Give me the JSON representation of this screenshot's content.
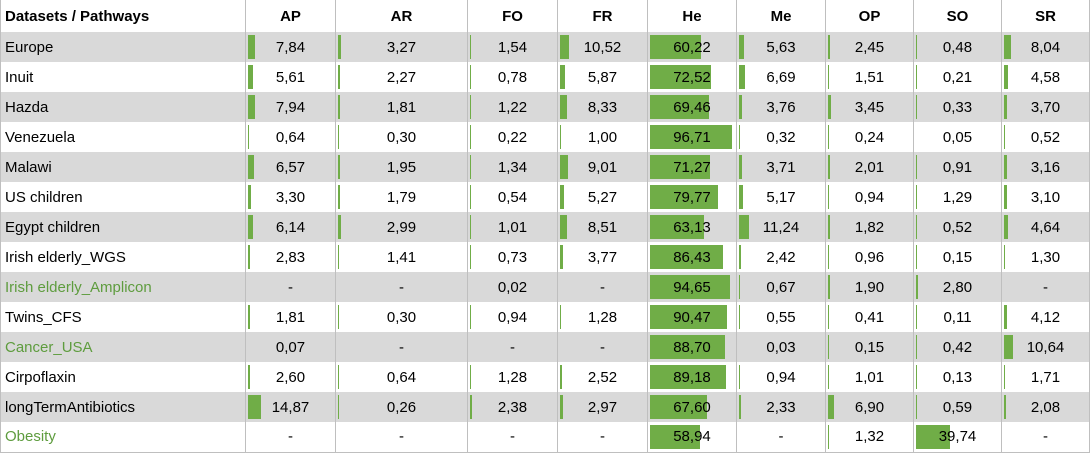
{
  "table": {
    "columns": [
      "Datasets / Pathways",
      "AP",
      "AR",
      "FO",
      "FR",
      "He",
      "Me",
      "OP",
      "SO",
      "SR"
    ],
    "bar_color": "#70ad47",
    "rows": [
      {
        "name": "Europe",
        "values": [
          7.84,
          3.27,
          1.54,
          10.52,
          60.22,
          5.63,
          2.45,
          0.48,
          8.04
        ],
        "labels": [
          "7,84",
          "3,27",
          "1,54",
          "10,52",
          "60,22",
          "5,63",
          "2,45",
          "0,48",
          "8,04"
        ]
      },
      {
        "name": "Inuit",
        "values": [
          5.61,
          2.27,
          0.78,
          5.87,
          72.52,
          6.69,
          1.51,
          0.21,
          4.58
        ],
        "labels": [
          "5,61",
          "2,27",
          "0,78",
          "5,87",
          "72,52",
          "6,69",
          "1,51",
          "0,21",
          "4,58"
        ]
      },
      {
        "name": "Hazda",
        "values": [
          7.94,
          1.81,
          1.22,
          8.33,
          69.46,
          3.76,
          3.45,
          0.33,
          3.7
        ],
        "labels": [
          "7,94",
          "1,81",
          "1,22",
          "8,33",
          "69,46",
          "3,76",
          "3,45",
          "0,33",
          "3,70"
        ]
      },
      {
        "name": "Venezuela",
        "values": [
          0.64,
          0.3,
          0.22,
          1.0,
          96.71,
          0.32,
          0.24,
          0.05,
          0.52
        ],
        "labels": [
          "0,64",
          "0,30",
          "0,22",
          "1,00",
          "96,71",
          "0,32",
          "0,24",
          "0,05",
          "0,52"
        ]
      },
      {
        "name": "Malawi",
        "values": [
          6.57,
          1.95,
          1.34,
          9.01,
          71.27,
          3.71,
          2.01,
          0.91,
          3.16
        ],
        "labels": [
          "6,57",
          "1,95",
          "1,34",
          "9,01",
          "71,27",
          "3,71",
          "2,01",
          "0,91",
          "3,16"
        ]
      },
      {
        "name": "US children",
        "values": [
          3.3,
          1.79,
          0.54,
          5.27,
          79.77,
          5.17,
          0.94,
          1.29,
          3.1
        ],
        "labels": [
          "3,30",
          "1,79",
          "0,54",
          "5,27",
          "79,77",
          "5,17",
          "0,94",
          "1,29",
          "3,10"
        ]
      },
      {
        "name": "Egypt children",
        "values": [
          6.14,
          2.99,
          1.01,
          8.51,
          63.13,
          11.24,
          1.82,
          0.52,
          4.64
        ],
        "labels": [
          "6,14",
          "2,99",
          "1,01",
          "8,51",
          "63,13",
          "11,24",
          "1,82",
          "0,52",
          "4,64"
        ]
      },
      {
        "name": "Irish elderly_WGS",
        "values": [
          2.83,
          1.41,
          0.73,
          3.77,
          86.43,
          2.42,
          0.96,
          0.15,
          1.3
        ],
        "labels": [
          "2,83",
          "1,41",
          "0,73",
          "3,77",
          "86,43",
          "2,42",
          "0,96",
          "0,15",
          "1,30"
        ]
      },
      {
        "name": "Irish elderly_Amplicon",
        "color": "#5e9c3e",
        "values": [
          null,
          null,
          0.02,
          null,
          94.65,
          0.67,
          1.9,
          2.8,
          null
        ],
        "labels": [
          "-",
          "-",
          "0,02",
          "-",
          "94,65",
          "0,67",
          "1,90",
          "2,80",
          "-"
        ]
      },
      {
        "name": "Twins_CFS",
        "values": [
          1.81,
          0.3,
          0.94,
          1.28,
          90.47,
          0.55,
          0.41,
          0.11,
          4.12
        ],
        "labels": [
          "1,81",
          "0,30",
          "0,94",
          "1,28",
          "90,47",
          "0,55",
          "0,41",
          "0,11",
          "4,12"
        ]
      },
      {
        "name": "Cancer_USA",
        "color": "#5e9c3e",
        "values": [
          0.07,
          null,
          null,
          null,
          88.7,
          0.03,
          0.15,
          0.42,
          10.64
        ],
        "labels": [
          "0,07",
          "-",
          "-",
          "-",
          "88,70",
          "0,03",
          "0,15",
          "0,42",
          "10,64"
        ]
      },
      {
        "name": "Cirpoflaxin",
        "values": [
          2.6,
          0.64,
          1.28,
          2.52,
          89.18,
          0.94,
          1.01,
          0.13,
          1.71
        ],
        "labels": [
          "2,60",
          "0,64",
          "1,28",
          "2,52",
          "89,18",
          "0,94",
          "1,01",
          "0,13",
          "1,71"
        ]
      },
      {
        "name": "longTermAntibiotics",
        "values": [
          14.87,
          0.26,
          2.38,
          2.97,
          67.6,
          2.33,
          6.9,
          0.59,
          2.08
        ],
        "labels": [
          "14,87",
          "0,26",
          "2,38",
          "2,97",
          "67,60",
          "2,33",
          "6,90",
          "0,59",
          "2,08"
        ]
      },
      {
        "name": "Obesity",
        "color": "#5e9c3e",
        "values": [
          null,
          null,
          null,
          null,
          58.94,
          null,
          1.32,
          39.74,
          null
        ],
        "labels": [
          "-",
          "-",
          "-",
          "-",
          "58,94",
          "-",
          "1,32",
          "39,74",
          "-"
        ]
      }
    ]
  }
}
